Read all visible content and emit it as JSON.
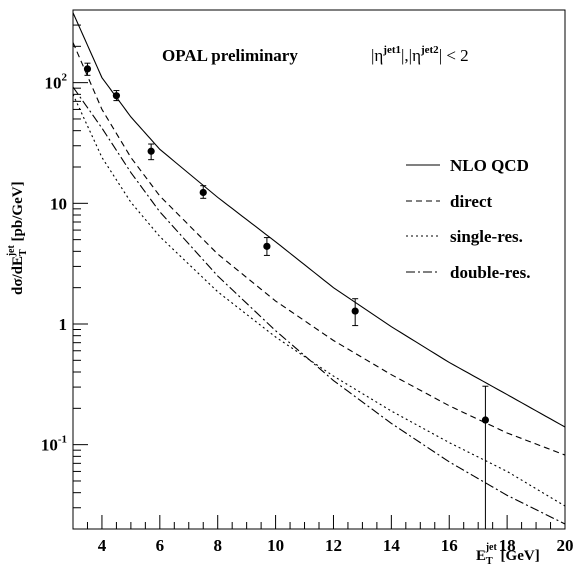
{
  "chart_data": {
    "type": "line",
    "title": "OPAL preliminary",
    "cut_label": {
      "base1": "|η",
      "sup1": "jet1",
      "mid": "|,|η",
      "sup2": "jet2",
      "end": "| < 2"
    },
    "ylabel": {
      "pre": "dσ/dE",
      "sub": "T",
      "sup": "jet",
      "post": " [pb/GeV]"
    },
    "xlabel": {
      "pre": "E",
      "sub": "T",
      "sup": "jet",
      "post": " [GeV]"
    },
    "xlim": [
      3,
      20
    ],
    "ylim": [
      0.02,
      400
    ],
    "yscale": "log",
    "xticks": [
      {
        "value": 4,
        "label": "4"
      },
      {
        "value": 6,
        "label": "6"
      },
      {
        "value": 8,
        "label": "8"
      },
      {
        "value": 10,
        "label": "10"
      },
      {
        "value": 12,
        "label": "12"
      },
      {
        "value": 14,
        "label": "14"
      },
      {
        "value": 16,
        "label": "16"
      },
      {
        "value": 18,
        "label": "18"
      },
      {
        "value": 20,
        "label": "20"
      }
    ],
    "yticks": [
      {
        "value": 100,
        "base": "10",
        "exp": "2"
      },
      {
        "value": 10,
        "base": "10",
        "exp": ""
      },
      {
        "value": 1,
        "base": "1",
        "exp": ""
      },
      {
        "value": 0.1,
        "base": "10",
        "exp": "-1"
      }
    ],
    "legend_position": "right",
    "data_points": [
      {
        "x": 3.5,
        "y": 130,
        "ylo": 115,
        "yhi": 145
      },
      {
        "x": 4.5,
        "y": 78,
        "ylo": 71,
        "yhi": 86
      },
      {
        "x": 5.7,
        "y": 27,
        "ylo": 23,
        "yhi": 31
      },
      {
        "x": 7.5,
        "y": 12.3,
        "ylo": 11,
        "yhi": 14
      },
      {
        "x": 9.7,
        "y": 4.4,
        "ylo": 3.7,
        "yhi": 5.2
      },
      {
        "x": 12.75,
        "y": 1.28,
        "ylo": 0.97,
        "yhi": 1.62
      },
      {
        "x": 17.25,
        "y": 0.16,
        "ylo": 0.001,
        "yhi": 0.305
      }
    ],
    "series": [
      {
        "name": "NLO QCD",
        "dash": "",
        "x": [
          3,
          4,
          5,
          6,
          8,
          10,
          12,
          14,
          16,
          18,
          20
        ],
        "y": [
          380,
          110,
          52,
          28,
          11.2,
          4.8,
          2.0,
          0.95,
          0.48,
          0.26,
          0.14
        ]
      },
      {
        "name": "direct",
        "dash": "6,4",
        "x": [
          3,
          4,
          5,
          6,
          8,
          10,
          12,
          14,
          16,
          18,
          20
        ],
        "y": [
          215,
          60,
          24,
          11.5,
          3.8,
          1.55,
          0.73,
          0.38,
          0.21,
          0.125,
          0.082
        ]
      },
      {
        "name": "single-res.",
        "dash": "2,3",
        "x": [
          3,
          4,
          5,
          6,
          8,
          10,
          12,
          14,
          16,
          18,
          20
        ],
        "y": [
          80,
          24,
          10.2,
          5.3,
          1.85,
          0.78,
          0.37,
          0.19,
          0.104,
          0.06,
          0.031
        ]
      },
      {
        "name": "double-res.",
        "dash": "9,3,2,3",
        "x": [
          3,
          4,
          5,
          6,
          8,
          10,
          12,
          14,
          16,
          18,
          20
        ],
        "y": [
          92,
          42,
          18,
          8.5,
          2.5,
          0.88,
          0.34,
          0.15,
          0.072,
          0.038,
          0.022
        ]
      }
    ]
  }
}
